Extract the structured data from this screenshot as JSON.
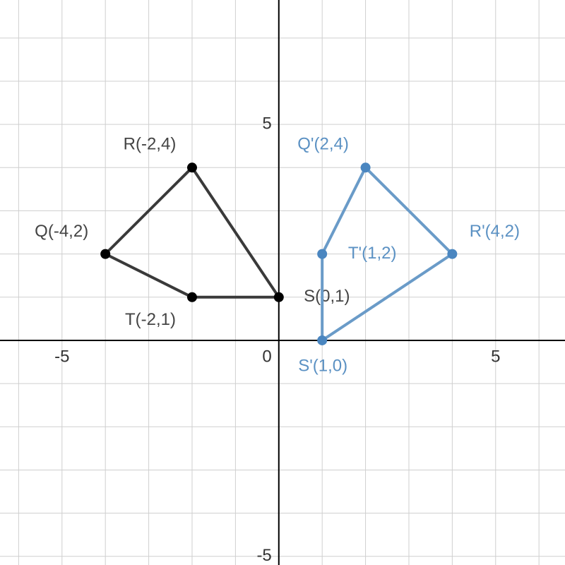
{
  "chart_data": {
    "type": "polygon",
    "xlim": [
      -6.43,
      6.6
    ],
    "ylim": [
      -5.2,
      7.88
    ],
    "xticks": [
      -5,
      0,
      5
    ],
    "yticks": [
      -5,
      5
    ],
    "grid": true,
    "grid_step": 1,
    "series": [
      {
        "color": "#3a3a3a",
        "point_color": "#000000",
        "label_color": "#444444",
        "x": [
          -2,
          -4,
          -2,
          0
        ],
        "values": [
          4,
          2,
          1,
          1
        ],
        "point_labels": [
          "R(-2,4)",
          "Q(-4,2)",
          "T(-2,1)",
          "S(0,1)"
        ]
      },
      {
        "color": "#6a9bc8",
        "point_color": "#4a86c0",
        "label_color": "#5b91c3",
        "x": [
          2,
          1,
          1,
          4
        ],
        "values": [
          4,
          2,
          0,
          2
        ],
        "point_labels": [
          "Q'(2,4)",
          "T'(1,2)",
          "S'(1,0)",
          "R'(4,2)"
        ]
      }
    ]
  }
}
